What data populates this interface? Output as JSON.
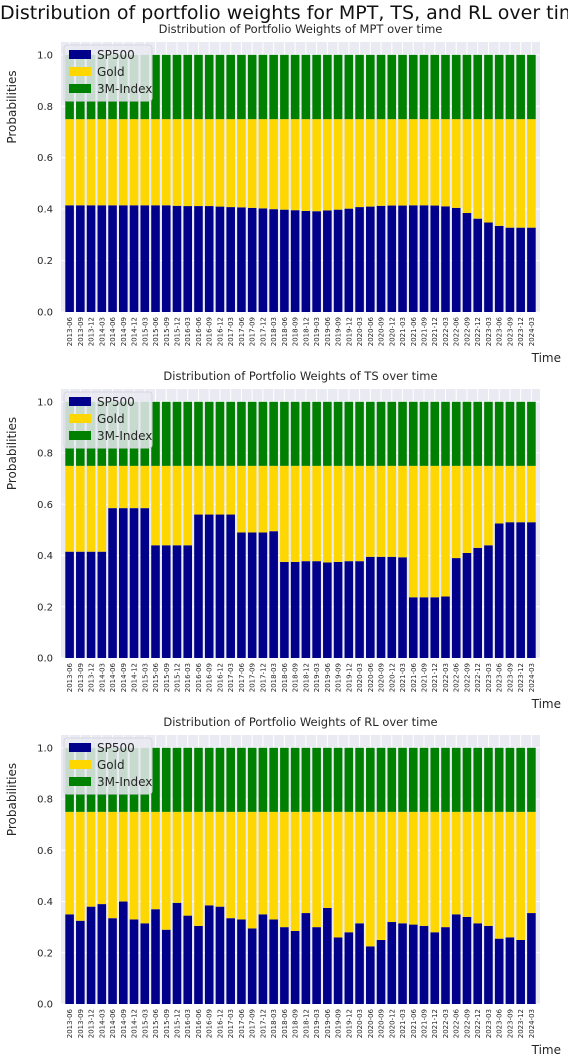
{
  "figure": {
    "suptitle": "Distribution of portfolio weights for MPT, TS, and RL over time"
  },
  "colors": {
    "SP500": "#00008b",
    "Gold": "#ffd700",
    "3M-Index": "#008000",
    "panel_bg": "#eaeaf2",
    "grid": "#ffffff"
  },
  "chart_data": [
    {
      "type": "bar",
      "stacked": true,
      "title": "Distribution of Portfolio Weights of MPT over time",
      "xlabel": "Time",
      "ylabel": "Probabilities",
      "ylim": [
        0,
        1.05
      ],
      "yticks": [
        "0.0",
        "0.2",
        "0.4",
        "0.6",
        "0.8",
        "1.0"
      ],
      "legend": {
        "placement": "top-left",
        "entries": [
          "SP500",
          "Gold",
          "3M-Index"
        ]
      },
      "grid": true,
      "categories": [
        "2013-06",
        "2013-09",
        "2013-12",
        "2014-03",
        "2014-06",
        "2014-09",
        "2014-12",
        "2015-03",
        "2015-06",
        "2015-09",
        "2015-12",
        "2016-03",
        "2016-06",
        "2016-09",
        "2016-12",
        "2017-03",
        "2017-06",
        "2017-09",
        "2017-12",
        "2018-03",
        "2018-06",
        "2018-09",
        "2018-12",
        "2019-03",
        "2019-06",
        "2019-09",
        "2019-12",
        "2020-03",
        "2020-06",
        "2020-09",
        "2020-12",
        "2021-03",
        "2021-06",
        "2021-09",
        "2021-12",
        "2022-03",
        "2022-06",
        "2022-09",
        "2022-12",
        "2023-03",
        "2023-06",
        "2023-09",
        "2023-12",
        "2024-03"
      ],
      "series": [
        {
          "name": "SP500",
          "values": [
            0.415,
            0.415,
            0.415,
            0.415,
            0.415,
            0.415,
            0.415,
            0.415,
            0.415,
            0.415,
            0.413,
            0.412,
            0.412,
            0.412,
            0.41,
            0.408,
            0.407,
            0.405,
            0.403,
            0.4,
            0.398,
            0.396,
            0.393,
            0.392,
            0.395,
            0.398,
            0.402,
            0.408,
            0.41,
            0.413,
            0.414,
            0.414,
            0.415,
            0.415,
            0.414,
            0.411,
            0.405,
            0.385,
            0.363,
            0.348,
            0.335,
            0.328,
            0.328,
            0.328
          ]
        },
        {
          "name": "Gold",
          "values": [
            0.335,
            0.335,
            0.335,
            0.335,
            0.335,
            0.335,
            0.335,
            0.335,
            0.335,
            0.335,
            0.337,
            0.338,
            0.338,
            0.338,
            0.34,
            0.342,
            0.343,
            0.345,
            0.347,
            0.35,
            0.352,
            0.354,
            0.357,
            0.358,
            0.355,
            0.352,
            0.348,
            0.342,
            0.34,
            0.337,
            0.336,
            0.336,
            0.335,
            0.335,
            0.336,
            0.339,
            0.345,
            0.365,
            0.387,
            0.402,
            0.415,
            0.422,
            0.422,
            0.422
          ]
        },
        {
          "name": "3M-Index",
          "values": [
            0.25,
            0.25,
            0.25,
            0.25,
            0.25,
            0.25,
            0.25,
            0.25,
            0.25,
            0.25,
            0.25,
            0.25,
            0.25,
            0.25,
            0.25,
            0.25,
            0.25,
            0.25,
            0.25,
            0.25,
            0.25,
            0.25,
            0.25,
            0.25,
            0.25,
            0.25,
            0.25,
            0.25,
            0.25,
            0.25,
            0.25,
            0.25,
            0.25,
            0.25,
            0.25,
            0.25,
            0.25,
            0.25,
            0.25,
            0.25,
            0.25,
            0.25,
            0.25,
            0.25
          ]
        }
      ]
    },
    {
      "type": "bar",
      "stacked": true,
      "title": "Distribution of Portfolio Weights of TS over time",
      "xlabel": "Time",
      "ylabel": "Probabilities",
      "ylim": [
        0,
        1.05
      ],
      "yticks": [
        "0.0",
        "0.2",
        "0.4",
        "0.6",
        "0.8",
        "1.0"
      ],
      "legend": {
        "placement": "top-left",
        "entries": [
          "SP500",
          "Gold",
          "3M-Index"
        ]
      },
      "grid": true,
      "categories": [
        "2013-06",
        "2013-09",
        "2013-12",
        "2014-03",
        "2014-06",
        "2014-09",
        "2014-12",
        "2015-03",
        "2015-06",
        "2015-09",
        "2015-12",
        "2016-03",
        "2016-06",
        "2016-09",
        "2016-12",
        "2017-03",
        "2017-06",
        "2017-09",
        "2017-12",
        "2018-03",
        "2018-06",
        "2018-09",
        "2018-12",
        "2019-03",
        "2019-06",
        "2019-09",
        "2019-12",
        "2020-03",
        "2020-06",
        "2020-09",
        "2020-12",
        "2021-03",
        "2021-06",
        "2021-09",
        "2021-12",
        "2022-03",
        "2022-06",
        "2022-09",
        "2022-12",
        "2023-03",
        "2023-06",
        "2023-09",
        "2023-12",
        "2024-03"
      ],
      "series": [
        {
          "name": "SP500",
          "values": [
            0.415,
            0.415,
            0.415,
            0.415,
            0.585,
            0.585,
            0.585,
            0.585,
            0.44,
            0.44,
            0.44,
            0.44,
            0.56,
            0.56,
            0.56,
            0.56,
            0.49,
            0.49,
            0.49,
            0.495,
            0.375,
            0.375,
            0.378,
            0.378,
            0.373,
            0.375,
            0.378,
            0.378,
            0.395,
            0.395,
            0.395,
            0.393,
            0.237,
            0.237,
            0.237,
            0.24,
            0.39,
            0.41,
            0.43,
            0.44,
            0.525,
            0.53,
            0.53,
            0.53
          ]
        },
        {
          "name": "Gold",
          "values": [
            0.335,
            0.335,
            0.335,
            0.335,
            0.165,
            0.165,
            0.165,
            0.165,
            0.31,
            0.31,
            0.31,
            0.31,
            0.19,
            0.19,
            0.19,
            0.19,
            0.26,
            0.26,
            0.26,
            0.255,
            0.375,
            0.375,
            0.372,
            0.372,
            0.377,
            0.375,
            0.372,
            0.372,
            0.355,
            0.355,
            0.355,
            0.357,
            0.513,
            0.513,
            0.513,
            0.51,
            0.36,
            0.34,
            0.32,
            0.31,
            0.225,
            0.22,
            0.22,
            0.22
          ]
        },
        {
          "name": "3M-Index",
          "values": [
            0.25,
            0.25,
            0.25,
            0.25,
            0.25,
            0.25,
            0.25,
            0.25,
            0.25,
            0.25,
            0.25,
            0.25,
            0.25,
            0.25,
            0.25,
            0.25,
            0.25,
            0.25,
            0.25,
            0.25,
            0.25,
            0.25,
            0.25,
            0.25,
            0.25,
            0.25,
            0.25,
            0.25,
            0.25,
            0.25,
            0.25,
            0.25,
            0.25,
            0.25,
            0.25,
            0.25,
            0.25,
            0.25,
            0.25,
            0.25,
            0.25,
            0.25,
            0.25,
            0.25
          ]
        }
      ]
    },
    {
      "type": "bar",
      "stacked": true,
      "title": "Distribution of Portfolio Weights of RL over time",
      "xlabel": "Time",
      "ylabel": "Probabilities",
      "ylim": [
        0,
        1.05
      ],
      "yticks": [
        "0.0",
        "0.2",
        "0.4",
        "0.6",
        "0.8",
        "1.0"
      ],
      "legend": {
        "placement": "top-left",
        "entries": [
          "SP500",
          "Gold",
          "3M-Index"
        ]
      },
      "grid": true,
      "categories": [
        "2013-06",
        "2013-09",
        "2013-12",
        "2014-03",
        "2014-06",
        "2014-09",
        "2014-12",
        "2015-03",
        "2015-06",
        "2015-09",
        "2015-12",
        "2016-03",
        "2016-06",
        "2016-09",
        "2016-12",
        "2017-03",
        "2017-06",
        "2017-09",
        "2017-12",
        "2018-03",
        "2018-06",
        "2018-09",
        "2018-12",
        "2019-03",
        "2019-06",
        "2019-09",
        "2019-12",
        "2020-03",
        "2020-06",
        "2020-09",
        "2020-12",
        "2021-03",
        "2021-06",
        "2021-09",
        "2021-12",
        "2022-03",
        "2022-06",
        "2022-09",
        "2022-12",
        "2023-03",
        "2023-06",
        "2023-09",
        "2023-12",
        "2024-03"
      ],
      "series": [
        {
          "name": "SP500",
          "values": [
            0.35,
            0.325,
            0.38,
            0.39,
            0.335,
            0.4,
            0.33,
            0.315,
            0.37,
            0.29,
            0.395,
            0.345,
            0.305,
            0.385,
            0.38,
            0.335,
            0.33,
            0.295,
            0.35,
            0.33,
            0.3,
            0.285,
            0.355,
            0.3,
            0.375,
            0.26,
            0.28,
            0.315,
            0.225,
            0.25,
            0.32,
            0.315,
            0.31,
            0.305,
            0.28,
            0.3,
            0.35,
            0.34,
            0.315,
            0.305,
            0.255,
            0.26,
            0.25,
            0.355
          ]
        },
        {
          "name": "Gold",
          "values": [
            0.4,
            0.425,
            0.37,
            0.36,
            0.415,
            0.35,
            0.42,
            0.435,
            0.38,
            0.46,
            0.355,
            0.405,
            0.445,
            0.365,
            0.37,
            0.415,
            0.42,
            0.455,
            0.4,
            0.42,
            0.45,
            0.465,
            0.395,
            0.45,
            0.375,
            0.49,
            0.47,
            0.435,
            0.525,
            0.5,
            0.43,
            0.435,
            0.44,
            0.445,
            0.47,
            0.45,
            0.4,
            0.41,
            0.435,
            0.445,
            0.495,
            0.49,
            0.5,
            0.395
          ]
        },
        {
          "name": "3M-Index",
          "values": [
            0.25,
            0.25,
            0.25,
            0.25,
            0.25,
            0.25,
            0.25,
            0.25,
            0.25,
            0.25,
            0.25,
            0.25,
            0.25,
            0.25,
            0.25,
            0.25,
            0.25,
            0.25,
            0.25,
            0.25,
            0.25,
            0.25,
            0.25,
            0.25,
            0.25,
            0.25,
            0.25,
            0.25,
            0.25,
            0.25,
            0.25,
            0.25,
            0.25,
            0.25,
            0.25,
            0.25,
            0.25,
            0.25,
            0.25,
            0.25,
            0.25,
            0.25,
            0.25,
            0.25
          ]
        }
      ]
    }
  ]
}
